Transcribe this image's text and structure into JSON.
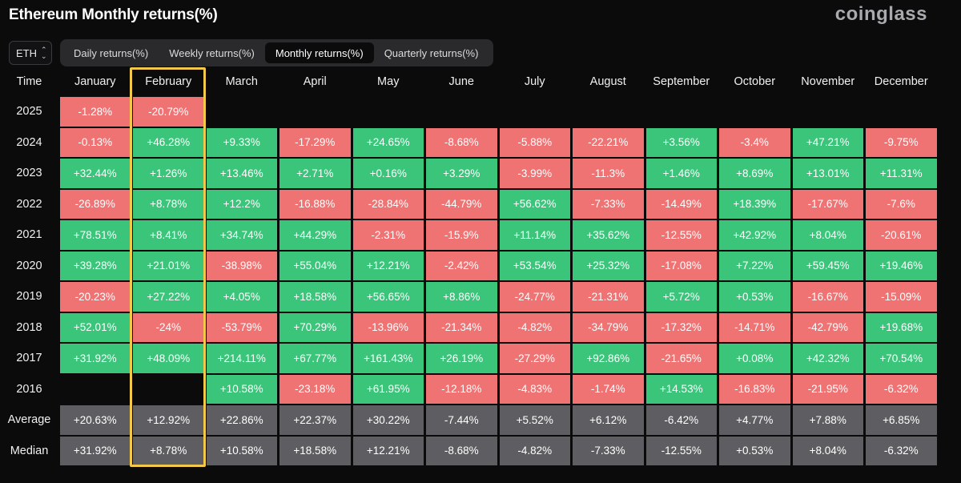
{
  "title": "Ethereum Monthly returns(%)",
  "brand": "coinglass",
  "coin_select": {
    "value": "ETH",
    "icon": "up-down-chevron-icon"
  },
  "tabs": [
    {
      "label": "Daily returns(%)",
      "active": false
    },
    {
      "label": "Weekly returns(%)",
      "active": false
    },
    {
      "label": "Monthly returns(%)",
      "active": true
    },
    {
      "label": "Quarterly returns(%)",
      "active": false
    }
  ],
  "colors": {
    "positive": "#3bc57a",
    "negative": "#f07374",
    "stat": "#5e5e62",
    "highlight": "#f3c94a"
  },
  "table": {
    "corner": "Time",
    "months": [
      "January",
      "February",
      "March",
      "April",
      "May",
      "June",
      "July",
      "August",
      "September",
      "October",
      "November",
      "December"
    ],
    "rows": [
      {
        "label": "2025",
        "type": "year",
        "values": [
          "-1.28%",
          "-20.79%",
          "",
          "",
          "",
          "",
          "",
          "",
          "",
          "",
          "",
          ""
        ]
      },
      {
        "label": "2024",
        "type": "year",
        "values": [
          "-0.13%",
          "+46.28%",
          "+9.33%",
          "-17.29%",
          "+24.65%",
          "-8.68%",
          "-5.88%",
          "-22.21%",
          "+3.56%",
          "-3.4%",
          "+47.21%",
          "-9.75%"
        ]
      },
      {
        "label": "2023",
        "type": "year",
        "values": [
          "+32.44%",
          "+1.26%",
          "+13.46%",
          "+2.71%",
          "+0.16%",
          "+3.29%",
          "-3.99%",
          "-11.3%",
          "+1.46%",
          "+8.69%",
          "+13.01%",
          "+11.31%"
        ]
      },
      {
        "label": "2022",
        "type": "year",
        "values": [
          "-26.89%",
          "+8.78%",
          "+12.2%",
          "-16.88%",
          "-28.84%",
          "-44.79%",
          "+56.62%",
          "-7.33%",
          "-14.49%",
          "+18.39%",
          "-17.67%",
          "-7.6%"
        ]
      },
      {
        "label": "2021",
        "type": "year",
        "values": [
          "+78.51%",
          "+8.41%",
          "+34.74%",
          "+44.29%",
          "-2.31%",
          "-15.9%",
          "+11.14%",
          "+35.62%",
          "-12.55%",
          "+42.92%",
          "+8.04%",
          "-20.61%"
        ]
      },
      {
        "label": "2020",
        "type": "year",
        "values": [
          "+39.28%",
          "+21.01%",
          "-38.98%",
          "+55.04%",
          "+12.21%",
          "-2.42%",
          "+53.54%",
          "+25.32%",
          "-17.08%",
          "+7.22%",
          "+59.45%",
          "+19.46%"
        ]
      },
      {
        "label": "2019",
        "type": "year",
        "values": [
          "-20.23%",
          "+27.22%",
          "+4.05%",
          "+18.58%",
          "+56.65%",
          "+8.86%",
          "-24.77%",
          "-21.31%",
          "+5.72%",
          "+0.53%",
          "-16.67%",
          "-15.09%"
        ]
      },
      {
        "label": "2018",
        "type": "year",
        "values": [
          "+52.01%",
          "-24%",
          "-53.79%",
          "+70.29%",
          "-13.96%",
          "-21.34%",
          "-4.82%",
          "-34.79%",
          "-17.32%",
          "-14.71%",
          "-42.79%",
          "+19.68%"
        ]
      },
      {
        "label": "2017",
        "type": "year",
        "values": [
          "+31.92%",
          "+48.09%",
          "+214.11%",
          "+67.77%",
          "+161.43%",
          "+26.19%",
          "-27.29%",
          "+92.86%",
          "-21.65%",
          "+0.08%",
          "+42.32%",
          "+70.54%"
        ]
      },
      {
        "label": "2016",
        "type": "year",
        "values": [
          "",
          "",
          "+10.58%",
          "-23.18%",
          "+61.95%",
          "-12.18%",
          "-4.83%",
          "-1.74%",
          "+14.53%",
          "-16.83%",
          "-21.95%",
          "-6.32%"
        ]
      },
      {
        "label": "Average",
        "type": "stat",
        "values": [
          "+20.63%",
          "+12.92%",
          "+22.86%",
          "+22.37%",
          "+30.22%",
          "-7.44%",
          "+5.52%",
          "+6.12%",
          "-6.42%",
          "+4.77%",
          "+7.88%",
          "+6.85%"
        ]
      },
      {
        "label": "Median",
        "type": "stat",
        "values": [
          "+31.92%",
          "+8.78%",
          "+10.58%",
          "+18.58%",
          "+12.21%",
          "-8.68%",
          "-4.82%",
          "-7.33%",
          "-12.55%",
          "+0.53%",
          "+8.04%",
          "-6.32%"
        ]
      }
    ],
    "highlighted_month": "February"
  }
}
